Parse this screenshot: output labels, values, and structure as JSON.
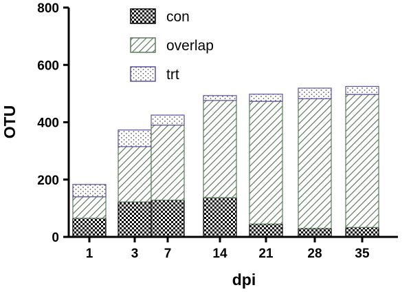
{
  "chart_data": {
    "type": "bar",
    "stacked": true,
    "categories": [
      "1",
      "3",
      "7",
      "14",
      "21",
      "28",
      "35"
    ],
    "series": [
      {
        "name": "con",
        "values": [
          65,
          122,
          128,
          137,
          45,
          30,
          33
        ],
        "pattern": "checker",
        "color": "#000000"
      },
      {
        "name": "overlap",
        "values": [
          75,
          193,
          262,
          339,
          428,
          452,
          464
        ],
        "pattern": "diagonal",
        "color": "#5a7a5a"
      },
      {
        "name": "trt",
        "values": [
          43,
          58,
          35,
          17,
          25,
          37,
          28
        ],
        "pattern": "dots",
        "color": "#5b4fa0"
      }
    ],
    "xlabel": "dpi",
    "ylabel": "OTU",
    "ylim": [
      0,
      800
    ],
    "yticks": [
      0,
      200,
      400,
      600,
      800
    ],
    "legend_position": "top-left",
    "grid": false
  }
}
